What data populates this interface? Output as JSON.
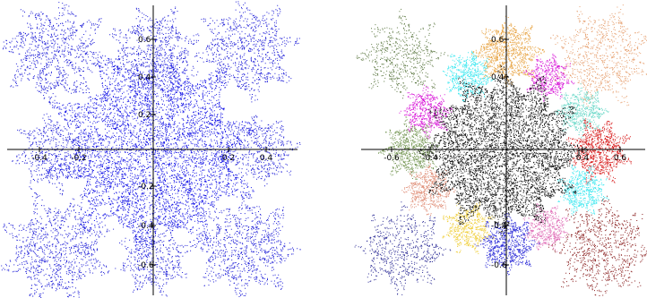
{
  "panels": [
    {
      "name": "left-panel",
      "x_ticks": [
        "-0.4",
        "-0.2",
        "0.2",
        "0.4"
      ],
      "y_ticks": [
        "0.6",
        "0.4",
        "0.2",
        "-0.2",
        "-0.4",
        "-0.6"
      ],
      "tiles": [
        {
          "name": "center-tile",
          "color": "#1414e6",
          "density": "dense"
        },
        {
          "name": "tile-top",
          "color": "#2020d8",
          "density": "sparse"
        },
        {
          "name": "tile-top-right",
          "color": "#2020d8",
          "density": "sparse"
        },
        {
          "name": "tile-right",
          "color": "#2020d8",
          "density": "sparse"
        },
        {
          "name": "tile-bottom-right",
          "color": "#2020d8",
          "density": "sparse"
        },
        {
          "name": "tile-bottom",
          "color": "#2020d8",
          "density": "sparse"
        },
        {
          "name": "tile-bottom-left",
          "color": "#2020d8",
          "density": "sparse"
        },
        {
          "name": "tile-left",
          "color": "#2020d8",
          "density": "sparse"
        },
        {
          "name": "tile-top-left",
          "color": "#2020d8",
          "density": "sparse"
        }
      ]
    },
    {
      "name": "right-panel",
      "x_ticks": [
        "-0.6",
        "-0.4",
        "0.4",
        "0.6"
      ],
      "y_ticks": [
        "0.6",
        "0.4",
        "-0.4",
        "-0.6"
      ],
      "tiles": [
        {
          "name": "center-tile",
          "color": "#111111",
          "density": "dense"
        },
        {
          "name": "tile-top-left-large",
          "color": "#5f7a45",
          "density": "sparse"
        },
        {
          "name": "tile-top-right-large",
          "color": "#e6a070",
          "density": "sparse"
        },
        {
          "name": "tile-bottom-left-large",
          "color": "#303098",
          "density": "sparse"
        },
        {
          "name": "tile-bottom-right-large",
          "color": "#8a2020",
          "density": "sparse"
        },
        {
          "name": "tile-top-orange",
          "color": "#e8a648",
          "density": "medium"
        },
        {
          "name": "tile-top-cyan",
          "color": "#40e8f0",
          "density": "medium"
        },
        {
          "name": "tile-top-magenta",
          "color": "#d81ad8",
          "density": "medium"
        },
        {
          "name": "tile-left-magenta",
          "color": "#d81ad8",
          "density": "medium"
        },
        {
          "name": "tile-left-olive",
          "color": "#7a9a5a",
          "density": "medium"
        },
        {
          "name": "tile-left-salmon",
          "color": "#e0907a",
          "density": "medium"
        },
        {
          "name": "tile-right-teal",
          "color": "#6ad8c8",
          "density": "medium"
        },
        {
          "name": "tile-right-red",
          "color": "#d82020",
          "density": "medium"
        },
        {
          "name": "tile-right-cyan",
          "color": "#40e8f0",
          "density": "medium"
        },
        {
          "name": "tile-bottom-yellow",
          "color": "#f0d040",
          "density": "medium"
        },
        {
          "name": "tile-bottom-blue",
          "color": "#3030d8",
          "density": "medium"
        },
        {
          "name": "tile-bottom-pink",
          "color": "#e070b8",
          "density": "medium"
        }
      ]
    }
  ]
}
